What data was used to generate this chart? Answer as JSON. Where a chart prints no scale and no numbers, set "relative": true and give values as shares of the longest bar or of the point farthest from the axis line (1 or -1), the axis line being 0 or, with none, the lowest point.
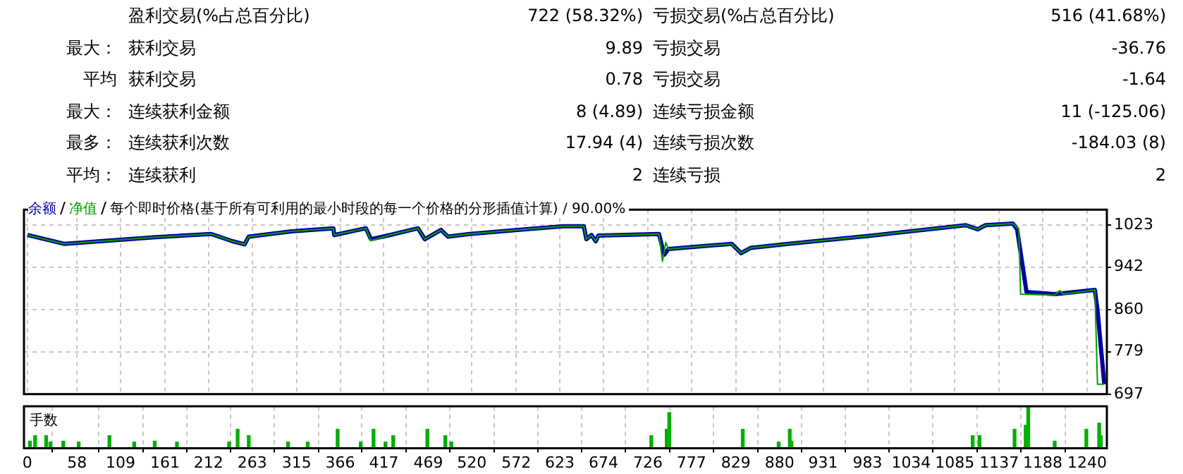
{
  "chart_data": [
    {
      "type": "other",
      "annotations": [
        null,
        "盈利交易(%占总百分比)",
        "722 (58.32%)",
        "亏损交易(%占总百分比)",
        "516 (41.68%)",
        "最大：",
        "获利交易",
        "9.89",
        "亏损交易",
        "-36.76",
        "平均",
        "获利交易",
        "0.78",
        "亏损交易",
        "-1.64",
        "最大：",
        "连续获利金额",
        "8 (4.89)",
        "连续亏损金额",
        "11 (-125.06)",
        "最多：",
        "连续获利次数",
        "17.94 (4)",
        "连续亏损次数",
        "-184.03 (8)",
        "平均：",
        "连续获利",
        "2",
        "连续亏损",
        "2"
      ]
    },
    {
      "type": "line",
      "title": "每个即时价格(基于所有可利用的最小时段的每一个价格的分形插值计算) / 90.00%",
      "legend": "top left",
      "marker": "none",
      "grid": true,
      "tick_labels": "y",
      "xlim": [
        -4,
        1263
      ],
      "xticks": [
        0,
        58,
        109,
        161,
        212,
        263,
        315,
        366,
        417,
        469,
        520,
        572,
        623,
        674,
        726,
        777,
        829,
        880,
        931,
        983,
        1034,
        1085,
        1137,
        1188,
        1240
      ],
      "ylim": [
        697,
        1053
      ],
      "yticks": [
        697,
        779,
        860,
        942,
        1023
      ],
      "series": [
        {
          "name": "余额",
          "color": "#0000a0",
          "x": [
            0,
            43,
            150,
            215,
            240,
            254,
            259,
            309,
            358,
            359,
            396,
            402,
            424,
            457,
            465,
            484,
            492,
            517,
            627,
            651,
            654,
            660,
            665,
            668,
            739,
            745,
            750,
            824,
            835,
            846,
            890,
            988,
            1098,
            1112,
            1121,
            1153,
            1158,
            1169,
            1202,
            1249,
            1252,
            1260
          ],
          "values": [
            1004,
            987,
            1000,
            1006,
            992,
            986,
            1001,
            1011,
            1017,
            1004,
            1017,
            996,
            1004,
            1017,
            996,
            1014,
            1001,
            1006,
            1021,
            1021,
            996,
            1004,
            992,
            1003,
            1006,
            966,
            977,
            987,
            969,
            979,
            987,
            1003,
            1023,
            1015,
            1023,
            1026,
            1015,
            894,
            890,
            898,
            860,
            716
          ]
        },
        {
          "name": "净值",
          "color": "#00a000",
          "x": [
            0,
            43,
            150,
            215,
            240,
            254,
            259,
            309,
            358,
            359,
            396,
            402,
            424,
            457,
            465,
            484,
            492,
            517,
            627,
            651,
            654,
            660,
            665,
            668,
            739,
            743,
            747,
            750,
            824,
            835,
            846,
            890,
            988,
            1098,
            1112,
            1121,
            1153,
            1160,
            1162,
            1202,
            1208,
            1212,
            1249,
            1252,
            1260
          ],
          "values": [
            1004,
            987,
            1000,
            1006,
            992,
            986,
            1001,
            1011,
            1017,
            1004,
            1017,
            993,
            1004,
            1017,
            996,
            1014,
            1001,
            1006,
            1021,
            1021,
            996,
            1004,
            992,
            1003,
            1006,
            953,
            990,
            977,
            987,
            969,
            979,
            987,
            1003,
            1023,
            1015,
            1023,
            1026,
            1015,
            890,
            888,
            897,
            890,
            898,
            716,
            716
          ]
        }
      ]
    },
    {
      "type": "bar",
      "title": "手数",
      "relative": true,
      "grid": "x",
      "tick_labels": "x",
      "color": "#00b000",
      "xlim": [
        -4,
        1263
      ],
      "xticks": [
        0,
        58,
        109,
        161,
        212,
        263,
        315,
        366,
        417,
        469,
        520,
        572,
        623,
        674,
        726,
        777,
        829,
        880,
        931,
        983,
        1034,
        1085,
        1137,
        1188,
        1240
      ],
      "x": [
        3,
        9,
        22,
        27,
        42,
        60,
        96,
        125,
        149,
        175,
        236,
        246,
        259,
        305,
        328,
        363,
        390,
        405,
        419,
        428,
        468,
        489,
        496,
        730,
        748,
        751,
        837,
        879,
        892,
        894,
        1106,
        1114,
        1155,
        1168,
        1171,
        1202,
        1239,
        1254,
        1256
      ],
      "values": [
        0.17,
        0.3,
        0.3,
        0.15,
        0.17,
        0.15,
        0.3,
        0.15,
        0.17,
        0.15,
        0.15,
        0.45,
        0.3,
        0.15,
        0.15,
        0.45,
        0.15,
        0.45,
        0.15,
        0.3,
        0.45,
        0.3,
        0.15,
        0.3,
        0.45,
        0.85,
        0.45,
        0.15,
        0.45,
        0.17,
        0.3,
        0.3,
        0.45,
        0.55,
        1,
        0.17,
        0.45,
        0.6,
        0.3
      ]
    }
  ]
}
